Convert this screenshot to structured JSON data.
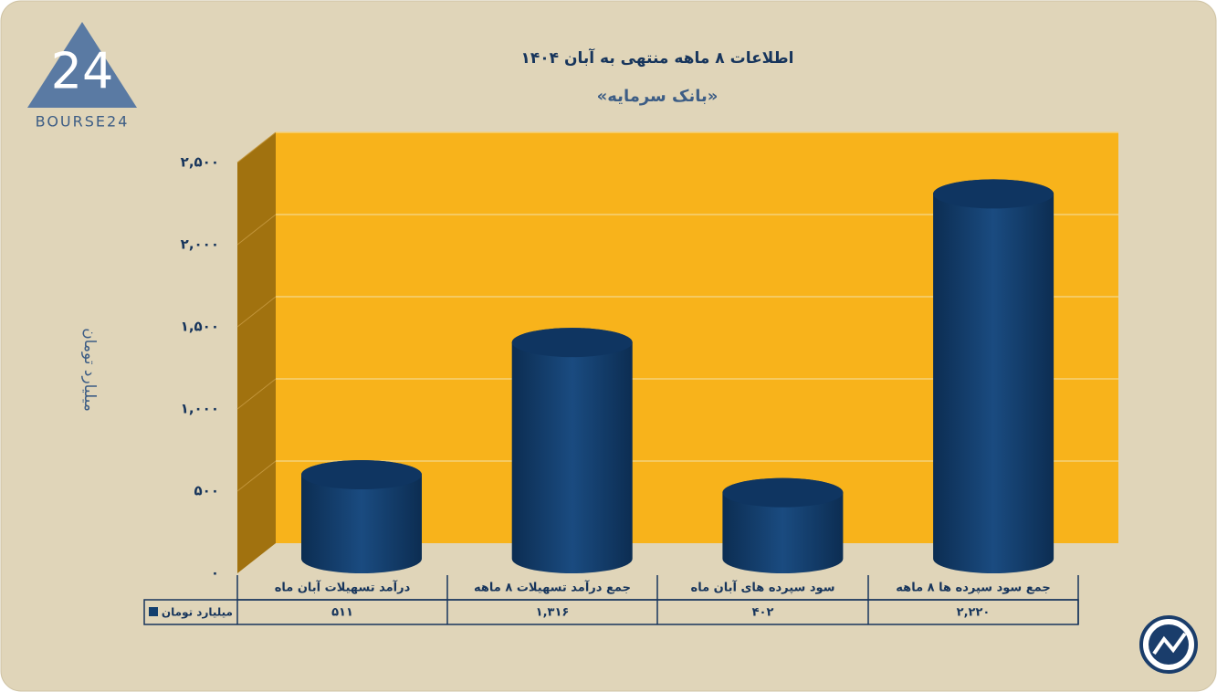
{
  "logo": "BOURSE24",
  "chart_data": {
    "type": "bar",
    "title": "اطلاعات ۸ ماهه منتهی به آبان ۱۴۰۴",
    "subtitle": "«بانک سرمایه»",
    "y_label": "میلیارد تومان",
    "categories": [
      "درآمد تسهیلات آبان ماه",
      "جمع درآمد تسهیلات ۸ ماهه",
      "سود سپرده های آبان ماه",
      "جمع سود سپرده ها ۸ ماهه"
    ],
    "series": [
      {
        "name": "میلیارد تومان",
        "color": "#133f6e",
        "values": [
          511,
          1316,
          402,
          2220
        ],
        "value_labels": [
          "۵۱۱",
          "۱,۳۱۶",
          "۴۰۲",
          "۲,۲۲۰"
        ]
      }
    ],
    "ylim": [
      0,
      2500
    ],
    "yticks": [
      {
        "value": 0,
        "label": "۰"
      },
      {
        "value": 500,
        "label": "۵۰۰"
      },
      {
        "value": 1000,
        "label": "۱,۰۰۰"
      },
      {
        "value": 1500,
        "label": "۱,۵۰۰"
      },
      {
        "value": 2000,
        "label": "۲,۰۰۰"
      },
      {
        "value": 2500,
        "label": "۲,۵۰۰"
      }
    ],
    "grid": true
  }
}
